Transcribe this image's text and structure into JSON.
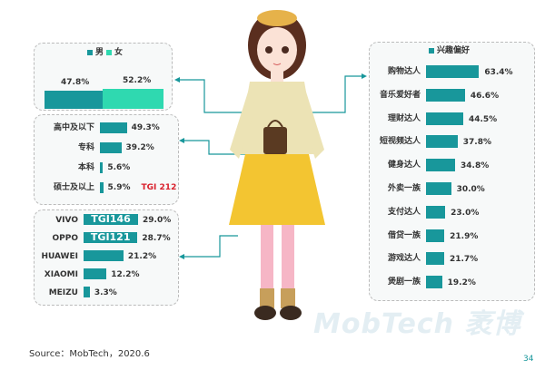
{
  "watermark": "MobTech 袤博",
  "colors": {
    "primary": "#18979b",
    "female": "#2fd9b0",
    "tgi": "#d9202c"
  },
  "chart_data": [
    {
      "type": "bar",
      "id": "gender",
      "legend": [
        "男",
        "女"
      ],
      "categories": [
        "男",
        "女"
      ],
      "values": [
        47.8,
        52.2
      ],
      "labels": [
        "47.8%",
        "52.2%"
      ]
    },
    {
      "type": "bar",
      "id": "education",
      "categories": [
        "高中及以下",
        "专科",
        "本科",
        "硕士及以上"
      ],
      "values": [
        49.3,
        39.2,
        5.6,
        5.9
      ],
      "labels": [
        "49.3%",
        "39.2%",
        "5.6%",
        "5.9%"
      ],
      "tgi": [
        "",
        "",
        "",
        "TGI 212"
      ]
    },
    {
      "type": "bar",
      "id": "phone",
      "categories": [
        "VIVO",
        "OPPO",
        "HUAWEI",
        "XIAOMI",
        "MEIZU"
      ],
      "values": [
        29.0,
        28.7,
        21.2,
        12.2,
        3.3
      ],
      "labels": [
        "29.0%",
        "28.7%",
        "21.2%",
        "12.2%",
        "3.3%"
      ],
      "tgi": [
        "TGI146",
        "TGI121",
        "",
        "",
        ""
      ]
    },
    {
      "type": "bar",
      "id": "interest",
      "legend": [
        "兴趣偏好"
      ],
      "categories": [
        "购物达人",
        "音乐爱好者",
        "理财达人",
        "短视频达人",
        "健身达人",
        "外卖一族",
        "支付达人",
        "借贷一族",
        "游戏达人",
        "煲剧一族"
      ],
      "values": [
        63.4,
        46.6,
        44.5,
        37.8,
        34.8,
        30.0,
        23.0,
        21.9,
        21.7,
        19.2
      ],
      "labels": [
        "63.4%",
        "46.6%",
        "44.5%",
        "37.8%",
        "34.8%",
        "30.0%",
        "23.0%",
        "21.9%",
        "21.7%",
        "19.2%"
      ]
    }
  ],
  "footer": {
    "source": "Source：MobTech，2020.6",
    "page": "34"
  }
}
